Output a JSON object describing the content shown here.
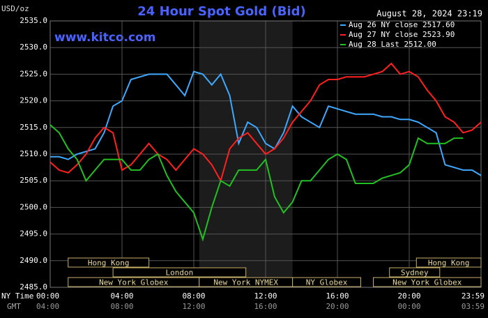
{
  "chart_data": {
    "type": "line",
    "title": "24 Hour Spot Gold (Bid)",
    "timestamp": "August 28, 2024 23:19",
    "source": "www.kitco.com",
    "y_label": "USD/oz",
    "x_row_labels": [
      "NY Time",
      "GMT"
    ],
    "x": [
      0,
      0.5,
      1,
      1.5,
      2,
      2.5,
      3,
      3.5,
      4,
      4.5,
      5,
      5.5,
      6,
      6.5,
      7,
      7.5,
      8,
      8.5,
      9,
      9.5,
      10,
      10.5,
      11,
      11.5,
      12,
      12.5,
      13,
      13.5,
      14,
      14.5,
      15,
      15.5,
      16,
      16.5,
      17,
      17.5,
      18,
      18.5,
      19,
      19.5,
      20,
      20.5,
      21,
      21.5,
      22,
      22.5,
      23,
      23.5,
      24
    ],
    "series": [
      {
        "name": "Aug 26 NY close 2517.60",
        "color": "#3fa9ff",
        "values": [
          2509.5,
          2509.5,
          2509,
          2510,
          2510.5,
          2511,
          2514,
          2519,
          2520,
          2524,
          2524.5,
          2525,
          2525,
          2525,
          2523,
          2521,
          2525.5,
          2525,
          2523,
          2525,
          2521,
          2512,
          2516,
          2515,
          2512,
          2511,
          2514,
          2519,
          2517,
          2516,
          2515,
          2519,
          2518.5,
          2518,
          2517.5,
          2517.5,
          2517.5,
          2517,
          2517,
          2516.5,
          2516.5,
          2516,
          2515,
          2514,
          2508,
          2507.5,
          2507,
          2507,
          2506
        ]
      },
      {
        "name": "Aug 27 NY close 2523.90",
        "color": "#ff2020",
        "values": [
          2508.5,
          2507,
          2506.5,
          2508,
          2510,
          2513,
          2515,
          2514,
          2507,
          2508,
          2510,
          2512,
          2510,
          2509,
          2507,
          2509,
          2511,
          2510,
          2508,
          2505,
          2511,
          2513,
          2514,
          2512,
          2510,
          2511,
          2513,
          2516,
          2518,
          2520,
          2523,
          2524,
          2524,
          2524.5,
          2524.5,
          2524.5,
          2525,
          2525.5,
          2527,
          2525,
          2525.5,
          2524.5,
          2522,
          2520,
          2517,
          2516,
          2514,
          2514.5,
          2516
        ]
      },
      {
        "name": "Aug 28 Last 2512.00",
        "color": "#22c022",
        "values": [
          2515.5,
          2514,
          2511,
          2509,
          2505,
          2507,
          2509,
          2509,
          2509,
          2507,
          2507,
          2509,
          2510,
          2506,
          2503,
          2501,
          2499,
          2494,
          2500,
          2505,
          2504,
          2507,
          2507,
          2507,
          2509,
          2502,
          2499,
          2501,
          2505,
          2505,
          2507,
          2509,
          2510,
          2509,
          2504.5,
          2504.5,
          2504.5,
          2505.5,
          2506,
          2506.5,
          2508,
          2513,
          2512,
          2512,
          2512,
          2513,
          2513,
          null,
          null
        ]
      }
    ],
    "xlim": [
      0,
      24
    ],
    "xticks": [
      {
        "value": 0,
        "label": "00:00"
      },
      {
        "value": 4,
        "label": "04:00"
      },
      {
        "value": 8,
        "label": "08:00"
      },
      {
        "value": 12,
        "label": "12:00"
      },
      {
        "value": 16,
        "label": "16:00"
      },
      {
        "value": 20,
        "label": "20:00"
      },
      {
        "value": 24,
        "label": "23:59"
      }
    ],
    "gmt_tick_labels": [
      "04:00",
      "08:00",
      "12:00",
      "16:00",
      "20:00",
      "00:00",
      "03:59"
    ],
    "ylim": [
      2485,
      2535
    ],
    "yticks": [
      {
        "value": 2485,
        "label": "2485.0"
      },
      {
        "value": 2490,
        "label": "2490.0"
      },
      {
        "value": 2495,
        "label": "2495.0"
      },
      {
        "value": 2500,
        "label": "2500.0"
      },
      {
        "value": 2505,
        "label": "2505.0"
      },
      {
        "value": 2510,
        "label": "2510.0"
      },
      {
        "value": 2515,
        "label": "2515.0"
      },
      {
        "value": 2520,
        "label": "2520.0"
      },
      {
        "value": 2525,
        "label": "2525.0"
      },
      {
        "value": 2530,
        "label": "2530.0"
      },
      {
        "value": 2535,
        "label": "2535.0"
      }
    ],
    "grid": true,
    "legend": "upper right",
    "sessions": [
      {
        "label": "Hong Kong",
        "start": 1,
        "end": 5.5,
        "row": 0
      },
      {
        "label": "London",
        "start": 3.5,
        "end": 10.9,
        "row": 1
      },
      {
        "label": "New York Globex",
        "start": 1,
        "end": 8.3,
        "row": 2
      },
      {
        "label": "New York NYMEX",
        "start": 8.3,
        "end": 13.5,
        "row": 2
      },
      {
        "label": "NY Globex",
        "start": 13.5,
        "end": 17.3,
        "row": 2
      },
      {
        "label": "Sydney",
        "start": 18.9,
        "end": 21.7,
        "row": 1
      },
      {
        "label": "Hong Kong",
        "start": 20.4,
        "end": 24,
        "row": 0
      },
      {
        "label": "New York Globex",
        "start": 18,
        "end": 24,
        "row": 2
      }
    ]
  }
}
